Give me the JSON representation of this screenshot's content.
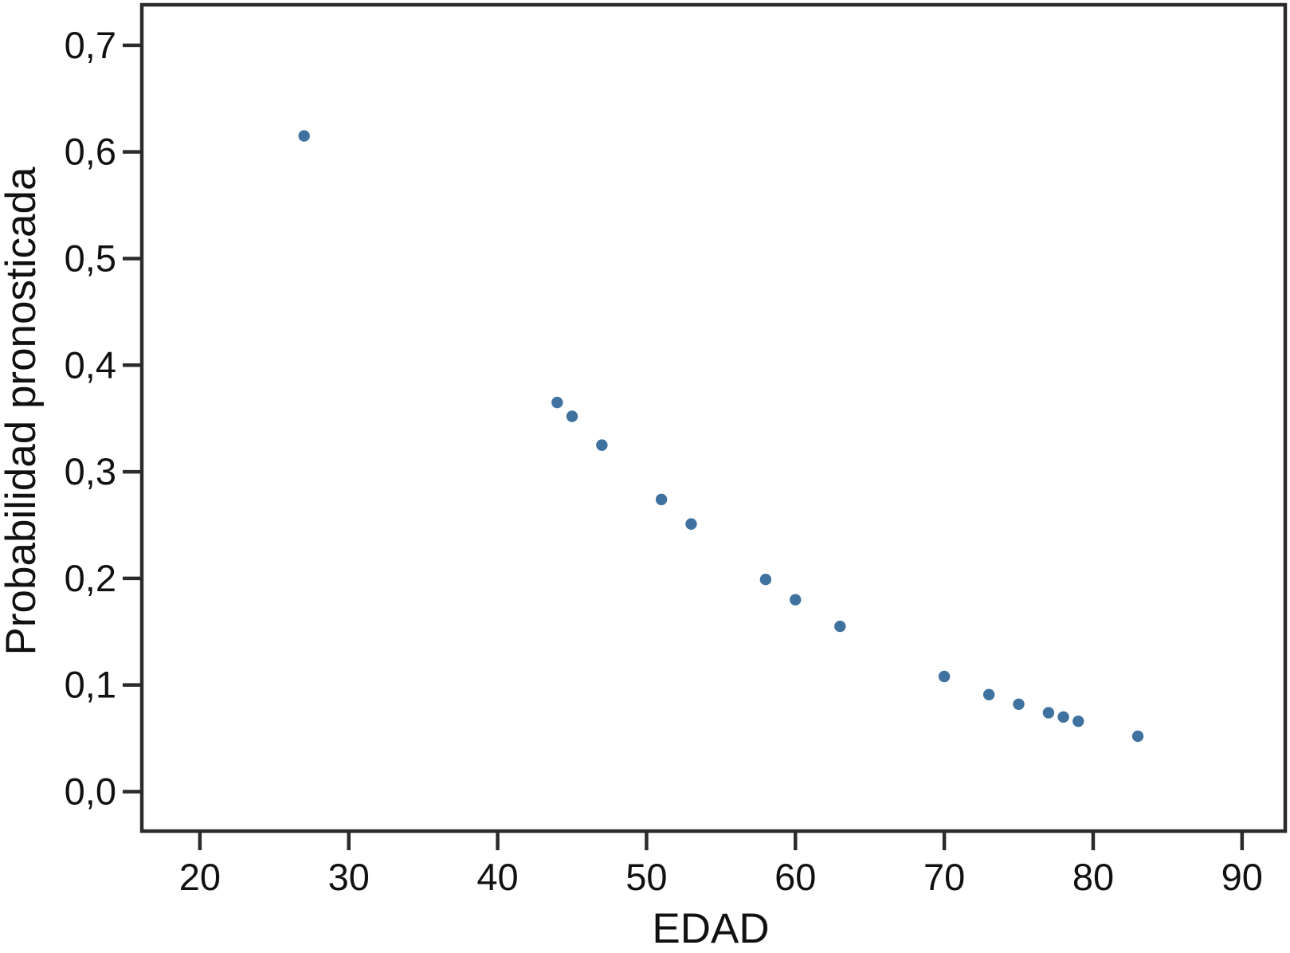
{
  "figure": {
    "background": "#ffffff",
    "frame_color": "#2b2b2b",
    "point_color": "#3a6d9d"
  },
  "chart_data": {
    "type": "scatter",
    "title": "",
    "xlabel": "EDAD",
    "ylabel": "Probabilidad pronosticada",
    "xlim": [
      16.1,
      92.9
    ],
    "ylim": [
      -0.037,
      0.738
    ],
    "grid": false,
    "legend": false,
    "x_ticks": [
      20,
      30,
      40,
      50,
      60,
      70,
      80,
      90
    ],
    "x_tick_labels": [
      "20",
      "30",
      "40",
      "50",
      "60",
      "70",
      "80",
      "90"
    ],
    "y_ticks": [
      0.0,
      0.1,
      0.2,
      0.3,
      0.4,
      0.5,
      0.6,
      0.7
    ],
    "y_tick_labels": [
      "0,0",
      "0,1",
      "0,2",
      "0,3",
      "0,4",
      "0,5",
      "0,6",
      "0,7"
    ],
    "points": [
      {
        "x": 27,
        "y": 0.615
      },
      {
        "x": 44,
        "y": 0.365
      },
      {
        "x": 45,
        "y": 0.352
      },
      {
        "x": 47,
        "y": 0.325
      },
      {
        "x": 51,
        "y": 0.274
      },
      {
        "x": 53,
        "y": 0.251
      },
      {
        "x": 58,
        "y": 0.199
      },
      {
        "x": 60,
        "y": 0.18
      },
      {
        "x": 63,
        "y": 0.155
      },
      {
        "x": 70,
        "y": 0.108
      },
      {
        "x": 73,
        "y": 0.091
      },
      {
        "x": 75,
        "y": 0.082
      },
      {
        "x": 77,
        "y": 0.074
      },
      {
        "x": 78,
        "y": 0.07
      },
      {
        "x": 79,
        "y": 0.066
      },
      {
        "x": 83,
        "y": 0.052
      }
    ]
  }
}
